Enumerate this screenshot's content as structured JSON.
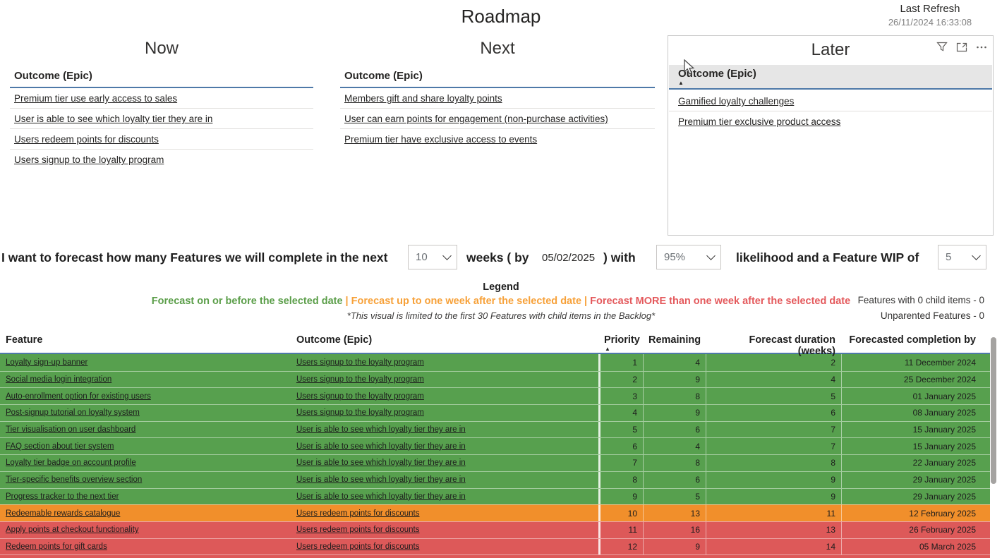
{
  "page": {
    "title": "Roadmap",
    "last_refresh_label": "Last Refresh",
    "last_refresh_value": "26/11/2024 16:33:08"
  },
  "panels": [
    {
      "title": "Now",
      "column_header": "Outcome (Epic)",
      "items": [
        "Premium tier use early access to sales",
        "User is able to see which loyalty tier they are in",
        "Users redeem points for discounts",
        "Users signup to the loyalty program"
      ]
    },
    {
      "title": "Next",
      "column_header": "Outcome (Epic)",
      "items": [
        "Members gift and share loyalty points",
        "User can earn points for engagement (non-purchase activities)",
        "Premium tier have exclusive access to events"
      ]
    },
    {
      "title": "Later",
      "column_header": "Outcome (Epic)",
      "sort_indicator": "▲",
      "items": [
        "Gamified loyalty challenges",
        "Premium tier exclusive product access"
      ]
    }
  ],
  "forecast": {
    "text_1": "I want to forecast how many Features we will complete in the next",
    "weeks_value": "10",
    "text_2": "weeks ( by",
    "date_value": "05/02/2025",
    "text_3": ")  with",
    "likelihood_value": "95%",
    "text_4": "likelihood and a Feature WIP of",
    "wip_value": "5"
  },
  "legend": {
    "title": "Legend",
    "separator": "|",
    "items": [
      {
        "label": "Forecast on or before the selected date",
        "color": "#5B9E49"
      },
      {
        "label": "Forecast up to one week after the selected date",
        "color": "#F7A139"
      },
      {
        "label": "Forecast MORE than one week after the selected date",
        "color": "#E4595C"
      }
    ],
    "note": "*This visual is limited to the first 30 Features with child items in the Backlog*",
    "stats": [
      "Features with 0 child items - 0",
      "Unparented Features - 0"
    ]
  },
  "table": {
    "headers": [
      "Feature",
      "Outcome (Epic)",
      "Priority",
      "Remaining",
      "Forecast duration (weeks)",
      "Forecasted completion by"
    ],
    "sort_indicator": "▲",
    "rows": [
      {
        "feature": "Loyalty sign-up banner",
        "outcome": "Users signup to the loyalty program",
        "priority": "1",
        "remaining": "4",
        "duration": "2",
        "completion": "11 December 2024",
        "status": "green"
      },
      {
        "feature": "Social media login integration",
        "outcome": "Users signup to the loyalty program",
        "priority": "2",
        "remaining": "9",
        "duration": "4",
        "completion": "25 December 2024",
        "status": "green"
      },
      {
        "feature": "Auto-enrollment option for existing users",
        "outcome": "Users signup to the loyalty program",
        "priority": "3",
        "remaining": "8",
        "duration": "5",
        "completion": "01 January 2025",
        "status": "green"
      },
      {
        "feature": "Post-signup tutorial on loyalty system",
        "outcome": "Users signup to the loyalty program",
        "priority": "4",
        "remaining": "9",
        "duration": "6",
        "completion": "08 January 2025",
        "status": "green"
      },
      {
        "feature": "Tier visualisation on user dashboard",
        "outcome": "User is able to see which loyalty tier they are in",
        "priority": "5",
        "remaining": "6",
        "duration": "7",
        "completion": "15 January 2025",
        "status": "green"
      },
      {
        "feature": "FAQ section about tier system",
        "outcome": "User is able to see which loyalty tier they are in",
        "priority": "6",
        "remaining": "4",
        "duration": "7",
        "completion": "15 January 2025",
        "status": "green"
      },
      {
        "feature": "Loyalty tier badge on account profile",
        "outcome": "User is able to see which loyalty tier they are in",
        "priority": "7",
        "remaining": "8",
        "duration": "8",
        "completion": "22 January 2025",
        "status": "green"
      },
      {
        "feature": "Tier-specific benefits overview section",
        "outcome": "User is able to see which loyalty tier they are in",
        "priority": "8",
        "remaining": "6",
        "duration": "9",
        "completion": "29 January 2025",
        "status": "green"
      },
      {
        "feature": "Progress tracker to the next tier",
        "outcome": "User is able to see which loyalty tier they are in",
        "priority": "9",
        "remaining": "5",
        "duration": "9",
        "completion": "29 January 2025",
        "status": "green"
      },
      {
        "feature": "Redeemable rewards catalogue",
        "outcome": "Users redeem points for discounts",
        "priority": "10",
        "remaining": "13",
        "duration": "11",
        "completion": "12 February 2025",
        "status": "orange"
      },
      {
        "feature": "Apply points at checkout functionality",
        "outcome": "Users redeem points for discounts",
        "priority": "11",
        "remaining": "16",
        "duration": "13",
        "completion": "26 February 2025",
        "status": "red"
      },
      {
        "feature": "Redeem points for gift cards",
        "outcome": "Users redeem points for discounts",
        "priority": "12",
        "remaining": "9",
        "duration": "14",
        "completion": "05 March 2025",
        "status": "red"
      }
    ]
  },
  "colors": {
    "green": "#57A04E",
    "orange": "#F18F2B",
    "red": "#DD5959",
    "header_underline": "#4E79A8"
  }
}
